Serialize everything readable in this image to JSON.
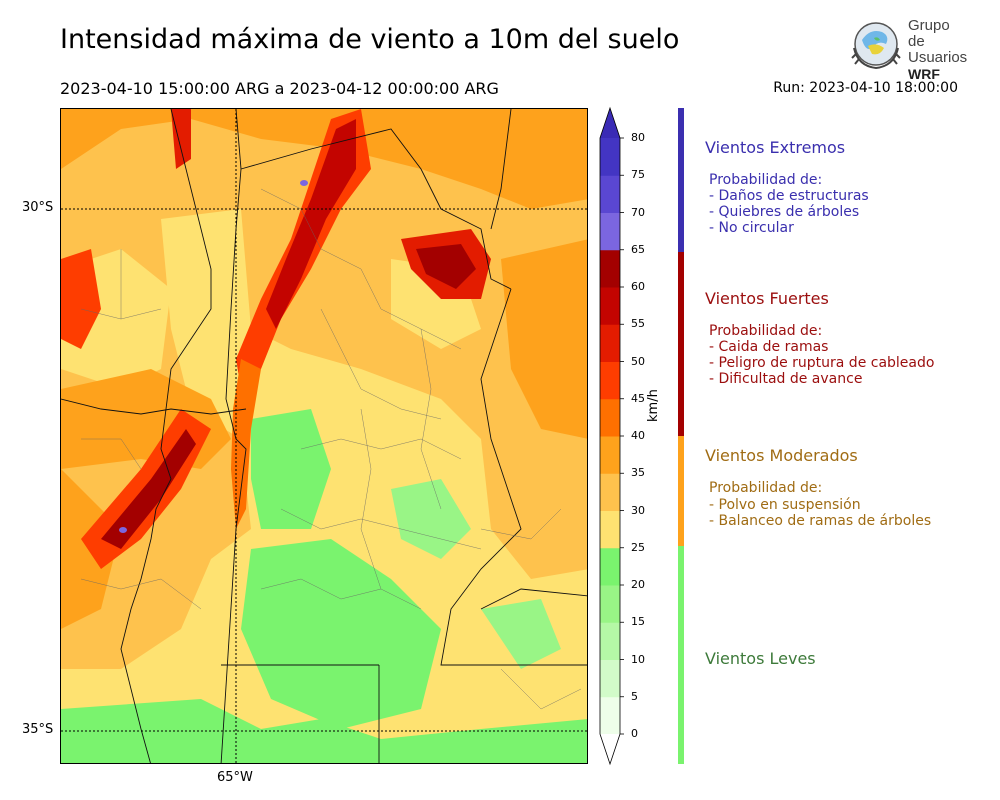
{
  "header": {
    "title": "Intensidad máxima de viento a 10m del suelo",
    "period": "2023-04-10 15:00:00 ARG  a  2023-04-12 00:00:00 ARG",
    "run": "Run: 2023-04-10 18:00:00"
  },
  "logo": {
    "line1": "Grupo de",
    "line2": "Usuarios",
    "line3": "WRF"
  },
  "axes": {
    "lat_top": "30°S",
    "lat_bottom": "35°S",
    "lon": "65°W"
  },
  "colorbar": {
    "unit": "km/h",
    "ticks": [
      "0",
      "5",
      "10",
      "15",
      "20",
      "25",
      "30",
      "35",
      "40",
      "45",
      "50",
      "55",
      "60",
      "65",
      "70",
      "75",
      "80"
    ],
    "colors": [
      "#eefee9",
      "#d2fbc9",
      "#b5f8a6",
      "#99f586",
      "#7af36e",
      "#fee271",
      "#fec24d",
      "#fea21c",
      "#fe7000",
      "#fe3d00",
      "#e31c00",
      "#c30400",
      "#a30000",
      "#7b66e0",
      "#5a47d2",
      "#4335c3"
    ],
    "top_color": "#3a2bb5"
  },
  "legend": {
    "extremos": {
      "title": "Vientos Extremos",
      "prob": "Probabilidad de:",
      "color": "#3a2fae",
      "items": [
        "- Daños de estructuras",
        "- Quiebres de árboles",
        "- No circular"
      ]
    },
    "fuertes": {
      "title": "Vientos Fuertes",
      "prob": "Probabilidad de:",
      "color": "#9b0e0e",
      "items": [
        "- Caida de ramas",
        "- Peligro de ruptura de cableado",
        "- Dificultad de avance"
      ]
    },
    "moderados": {
      "title": "Vientos Moderados",
      "prob": "Probabilidad de:",
      "color": "#a06c14",
      "items": [
        "- Polvo en suspensión",
        "- Balanceo de ramas de árboles"
      ]
    },
    "leves": {
      "title": "Vientos Leves",
      "color": "#3d7a3a"
    },
    "bar_colors": {
      "extremos": "#3b2fb0",
      "fuertes": "#a30000",
      "moderados": "#fea21c",
      "leves": "#7af36e"
    }
  }
}
